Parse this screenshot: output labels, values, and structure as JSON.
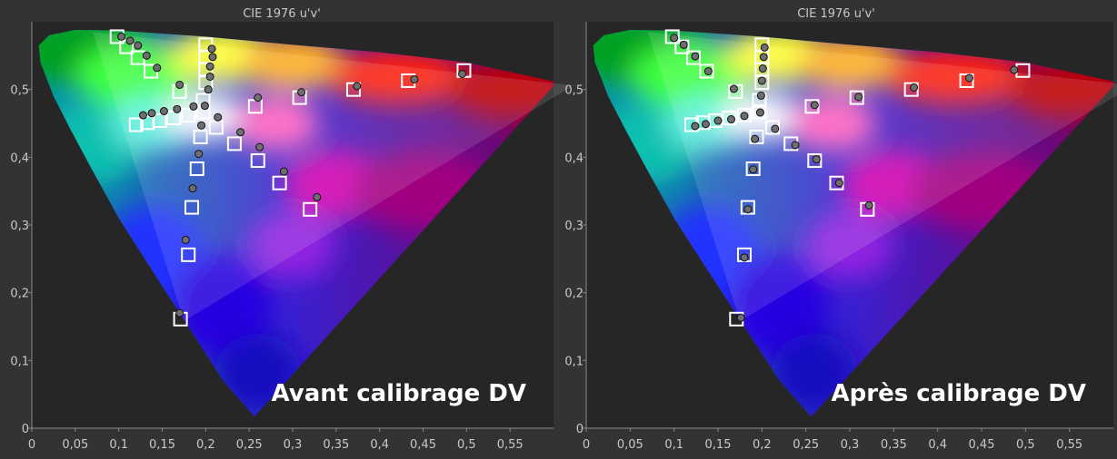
{
  "colors": {
    "background": "#333333",
    "plot_area": "#262626",
    "axis_text": "#c8c8c8",
    "target_box": "#ffffff",
    "measured_point": "#6e6e6e"
  },
  "chart_data": [
    {
      "type": "scatter",
      "title": "CIE 1976 u'v'",
      "annotation": "Avant calibrage DV",
      "xlim": [
        0,
        0.6
      ],
      "ylim": [
        0,
        0.6
      ],
      "xticks": [
        "0",
        "0,05",
        "0,1",
        "0,15",
        "0,2",
        "0,25",
        "0,3",
        "0,35",
        "0,4",
        "0,45",
        "0,5",
        "0,55"
      ],
      "yticks": [
        "0",
        "0,1",
        "0,2",
        "0,3",
        "0,4",
        "0,5"
      ],
      "grid": false,
      "series": [
        {
          "role": "targets",
          "marker": "square",
          "points": [
            [
              0.098,
              0.578
            ],
            [
              0.109,
              0.563
            ],
            [
              0.122,
              0.547
            ],
            [
              0.137,
              0.527
            ],
            [
              0.17,
              0.497
            ],
            [
              0.2,
              0.566
            ],
            [
              0.2,
              0.548
            ],
            [
              0.2,
              0.53
            ],
            [
              0.2,
              0.51
            ],
            [
              0.197,
              0.484
            ],
            [
              0.197,
              0.467
            ],
            [
              0.12,
              0.448
            ],
            [
              0.133,
              0.451
            ],
            [
              0.147,
              0.454
            ],
            [
              0.163,
              0.458
            ],
            [
              0.18,
              0.462
            ],
            [
              0.194,
              0.43
            ],
            [
              0.19,
              0.383
            ],
            [
              0.184,
              0.326
            ],
            [
              0.18,
              0.256
            ],
            [
              0.171,
              0.161
            ],
            [
              0.212,
              0.444
            ],
            [
              0.233,
              0.42
            ],
            [
              0.26,
              0.395
            ],
            [
              0.285,
              0.362
            ],
            [
              0.32,
              0.323
            ],
            [
              0.257,
              0.475
            ],
            [
              0.308,
              0.488
            ],
            [
              0.37,
              0.5
            ],
            [
              0.433,
              0.513
            ],
            [
              0.497,
              0.528
            ]
          ]
        },
        {
          "role": "measured",
          "marker": "circle",
          "points": [
            [
              0.103,
              0.578
            ],
            [
              0.113,
              0.572
            ],
            [
              0.122,
              0.565
            ],
            [
              0.132,
              0.55
            ],
            [
              0.144,
              0.532
            ],
            [
              0.17,
              0.507
            ],
            [
              0.207,
              0.56
            ],
            [
              0.208,
              0.548
            ],
            [
              0.205,
              0.534
            ],
            [
              0.205,
              0.519
            ],
            [
              0.203,
              0.5
            ],
            [
              0.199,
              0.476
            ],
            [
              0.128,
              0.462
            ],
            [
              0.138,
              0.465
            ],
            [
              0.152,
              0.468
            ],
            [
              0.167,
              0.471
            ],
            [
              0.186,
              0.475
            ],
            [
              0.195,
              0.447
            ],
            [
              0.192,
              0.405
            ],
            [
              0.185,
              0.354
            ],
            [
              0.177,
              0.278
            ],
            [
              0.17,
              0.17
            ],
            [
              0.214,
              0.459
            ],
            [
              0.24,
              0.437
            ],
            [
              0.262,
              0.415
            ],
            [
              0.29,
              0.379
            ],
            [
              0.328,
              0.341
            ],
            [
              0.26,
              0.488
            ],
            [
              0.31,
              0.496
            ],
            [
              0.374,
              0.505
            ],
            [
              0.44,
              0.515
            ],
            [
              0.495,
              0.523
            ]
          ]
        }
      ]
    },
    {
      "type": "scatter",
      "title": "CIE 1976 u'v'",
      "annotation": "Après calibrage DV",
      "xlim": [
        0,
        0.6
      ],
      "ylim": [
        0,
        0.6
      ],
      "xticks": [
        "0",
        "0,05",
        "0,1",
        "0,15",
        "0,2",
        "0,25",
        "0,3",
        "0,35",
        "0,4",
        "0,45",
        "0,5",
        "0,55"
      ],
      "yticks": [
        "0",
        "0,1",
        "0,2",
        "0,3",
        "0,4",
        "0,5"
      ],
      "grid": false,
      "series": [
        {
          "role": "targets",
          "marker": "square",
          "points": [
            [
              0.098,
              0.578
            ],
            [
              0.109,
              0.563
            ],
            [
              0.122,
              0.547
            ],
            [
              0.137,
              0.527
            ],
            [
              0.17,
              0.497
            ],
            [
              0.2,
              0.566
            ],
            [
              0.2,
              0.548
            ],
            [
              0.2,
              0.53
            ],
            [
              0.2,
              0.51
            ],
            [
              0.197,
              0.484
            ],
            [
              0.197,
              0.467
            ],
            [
              0.12,
              0.448
            ],
            [
              0.133,
              0.451
            ],
            [
              0.147,
              0.454
            ],
            [
              0.163,
              0.458
            ],
            [
              0.18,
              0.462
            ],
            [
              0.194,
              0.43
            ],
            [
              0.19,
              0.383
            ],
            [
              0.184,
              0.326
            ],
            [
              0.18,
              0.256
            ],
            [
              0.171,
              0.161
            ],
            [
              0.212,
              0.444
            ],
            [
              0.233,
              0.42
            ],
            [
              0.26,
              0.395
            ],
            [
              0.285,
              0.362
            ],
            [
              0.32,
              0.323
            ],
            [
              0.257,
              0.475
            ],
            [
              0.308,
              0.488
            ],
            [
              0.37,
              0.5
            ],
            [
              0.433,
              0.513
            ],
            [
              0.497,
              0.528
            ]
          ]
        },
        {
          "role": "measured",
          "marker": "circle",
          "points": [
            [
              0.1,
              0.576
            ],
            [
              0.111,
              0.566
            ],
            [
              0.124,
              0.549
            ],
            [
              0.139,
              0.527
            ],
            [
              0.168,
              0.501
            ],
            [
              0.203,
              0.562
            ],
            [
              0.202,
              0.548
            ],
            [
              0.201,
              0.531
            ],
            [
              0.2,
              0.513
            ],
            [
              0.199,
              0.491
            ],
            [
              0.198,
              0.466
            ],
            [
              0.124,
              0.446
            ],
            [
              0.136,
              0.449
            ],
            [
              0.15,
              0.454
            ],
            [
              0.165,
              0.456
            ],
            [
              0.18,
              0.461
            ],
            [
              0.192,
              0.427
            ],
            [
              0.19,
              0.382
            ],
            [
              0.184,
              0.323
            ],
            [
              0.18,
              0.252
            ],
            [
              0.176,
              0.163
            ],
            [
              0.215,
              0.442
            ],
            [
              0.238,
              0.418
            ],
            [
              0.262,
              0.397
            ],
            [
              0.288,
              0.362
            ],
            [
              0.322,
              0.329
            ],
            [
              0.26,
              0.477
            ],
            [
              0.31,
              0.489
            ],
            [
              0.373,
              0.503
            ],
            [
              0.436,
              0.517
            ],
            [
              0.487,
              0.529
            ]
          ]
        }
      ]
    }
  ]
}
